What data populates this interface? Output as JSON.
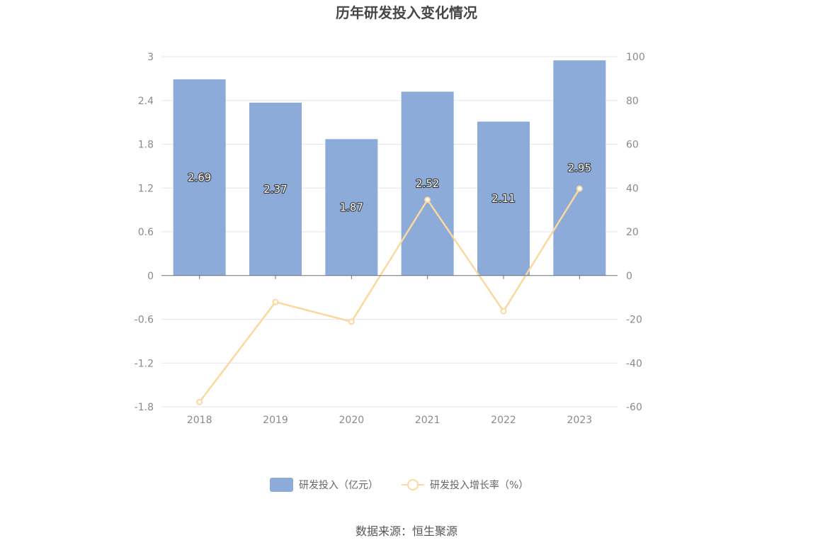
{
  "chart_data": {
    "type": "bar",
    "title": "历年研发投入变化情况",
    "categories": [
      "2018",
      "2019",
      "2020",
      "2021",
      "2022",
      "2023"
    ],
    "series": [
      {
        "name": "研发投入（亿元）",
        "type": "bar",
        "axis": "left",
        "values": [
          2.69,
          2.37,
          1.87,
          2.52,
          2.11,
          2.95
        ],
        "color": "#8dabd9"
      },
      {
        "name": "研发投入增长率（%）",
        "type": "line",
        "axis": "right",
        "values": [
          -57.8,
          -12.1,
          -21.1,
          34.6,
          -16.3,
          39.7
        ],
        "color": "#fad8a0"
      }
    ],
    "y_left": {
      "ticks": [
        "3",
        "2.4",
        "1.8",
        "1.2",
        "0.6",
        "0",
        "-0.6",
        "-1.2",
        "-1.8"
      ],
      "ylim": [
        -1.8,
        3
      ]
    },
    "y_right": {
      "ticks": [
        "100",
        "80",
        "60",
        "40",
        "20",
        "0",
        "-20",
        "-40",
        "-60"
      ],
      "ylim": [
        -60,
        100
      ]
    },
    "grid": true,
    "legend_position": "bottom"
  },
  "source_text": "数据来源：恒生聚源"
}
